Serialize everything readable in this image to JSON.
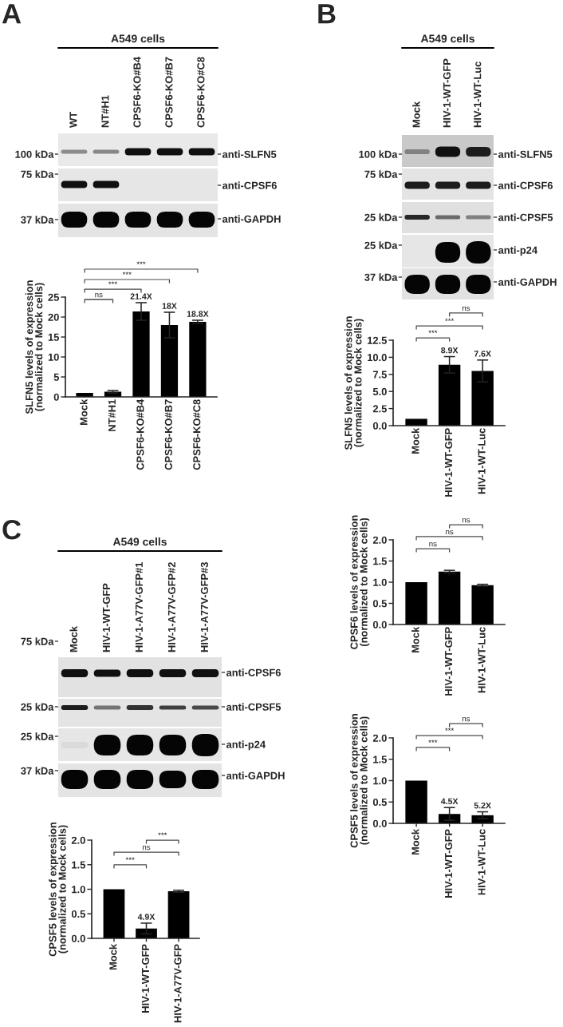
{
  "chart_data": [
    {
      "type": "other",
      "title": "A549 cells",
      "annotations": [
        "A"
      ],
      "categories": [
        "WT",
        "NT#H1",
        "CPSF6-KO#B4",
        "CPSF6-KO#B7",
        "CPSF6-KO#C8"
      ],
      "y_categories": [
        "100 kDa",
        "75 kDa",
        "37 kDa"
      ],
      "y2_categories": [
        "anti-SLFN5",
        "anti-CPSF6",
        "anti-GAPDH"
      ]
    },
    {
      "type": "bar",
      "ylabel": "SLFN5 levels of expression\n(normalized to Mock cells)",
      "categories": [
        "Mock",
        "NT#H1",
        "CPSF6-KO#B4",
        "CPSF6-KO#B7",
        "CPSF6-KO#C8"
      ],
      "values": [
        1,
        1.3,
        21.4,
        18,
        18.8
      ],
      "errors": [
        null,
        0.3,
        2.2,
        3.2,
        0.4
      ],
      "color": "#000000",
      "ylim": [
        0,
        25
      ],
      "yticks": [
        0,
        5,
        10,
        15,
        20,
        25
      ],
      "annotations": [
        "ns",
        "***",
        "***",
        "***",
        {
          "text": "21.4X",
          "x": "CPSF6-KO#B4",
          "y": 23.6
        },
        {
          "text": "18X",
          "x": "CPSF6-KO#B7",
          "y": 21.2
        },
        {
          "text": "18.8X",
          "x": "CPSF6-KO#C8",
          "y": 19.2
        }
      ]
    },
    {
      "type": "other",
      "title": "A549 cells",
      "annotations": [
        "B"
      ],
      "categories": [
        "Mock",
        "HIV-1-WT-GFP",
        "HIV-1-WT-Luc"
      ],
      "y_categories": [
        "100 kDa",
        "75 kDa",
        "25 kDa",
        "25 kDa",
        "37 kDa"
      ],
      "y2_categories": [
        "anti-SLFN5",
        "anti-CPSF6",
        "anti-CPSF5",
        "anti-p24",
        "anti-GAPDH"
      ]
    },
    {
      "type": "bar",
      "ylabel": "SLFN5 levels of expression\n(normalized to Mock cells)",
      "categories": [
        "Mock",
        "HIV-1-WT-GFP",
        "HIV-1-WT-Luc"
      ],
      "values": [
        1,
        8.9,
        8.0
      ],
      "errors": [
        null,
        1.2,
        1.6
      ],
      "color": "#000000",
      "ylim": [
        0,
        12.5
      ],
      "yticks": [
        {
          "value": 0,
          "label": "0.0"
        },
        2.5,
        {
          "value": 5,
          "label": "5.0"
        },
        7.5,
        {
          "value": 10,
          "label": "10.0"
        },
        12.5
      ],
      "annotations": [
        "***",
        "***",
        "ns",
        {
          "text": "8.9X",
          "x": "HIV-1-WT-GFP",
          "y": 10.1
        },
        {
          "text": "7.6X",
          "x": "HIV-1-WT-Luc",
          "y": 9.6
        }
      ]
    },
    {
      "type": "bar",
      "ylabel": "CPSF6 levels of expression\n(normalized to Mock cells)",
      "categories": [
        "Mock",
        "HIV-1-WT-GFP",
        "HIV-1-WT-Luc"
      ],
      "values": [
        1,
        1.25,
        0.93
      ],
      "errors": [
        null,
        0.03,
        0.02
      ],
      "color": "#000000",
      "ylim": [
        0,
        2
      ],
      "yticks": [
        {
          "value": 0,
          "label": "0.0"
        },
        0.5,
        {
          "value": 1,
          "label": "1.0"
        },
        1.5,
        {
          "value": 2,
          "label": "2.0"
        }
      ],
      "annotations": [
        "ns",
        "ns",
        "ns"
      ]
    },
    {
      "type": "bar",
      "ylabel": "CPSF5 levels of expression\n(normalized to Mock cells)",
      "categories": [
        "Mock",
        "HIV-1-WT-GFP",
        "HIV-1-WT-Luc"
      ],
      "values": [
        1,
        0.22,
        0.19
      ],
      "errors": [
        null,
        0.15,
        0.08
      ],
      "color": "#000000",
      "ylim": [
        0,
        2
      ],
      "yticks": [
        {
          "value": 0,
          "label": "0.0"
        },
        0.5,
        {
          "value": 1,
          "label": "1.0"
        },
        1.5,
        {
          "value": 2,
          "label": "2.0"
        }
      ],
      "annotations": [
        "***",
        "***",
        "ns",
        {
          "text": "4.5X",
          "x": "HIV-1-WT-GFP",
          "y": 0.37
        },
        {
          "text": "5.2X",
          "x": "HIV-1-WT-Luc",
          "y": 0.27
        }
      ]
    },
    {
      "type": "other",
      "title": "A549 cells",
      "annotations": [
        "C"
      ],
      "categories": [
        "Mock",
        "HIV-1-WT-GFP",
        "HIV-1-A77V-GFP#1",
        "HIV-1-A77V-GFP#2",
        "HIV-1-A77V-GFP#3"
      ],
      "y_categories": [
        "75 kDa",
        "25 kDa",
        "25 kDa",
        "37 kDa"
      ],
      "y2_categories": [
        "anti-CPSF6",
        "anti-CPSF5",
        "anti-p24",
        "anti-GAPDH"
      ]
    },
    {
      "type": "bar",
      "ylabel": "CPSF5 levels of expression\n(normalized to Mock cells)",
      "categories": [
        "Mock",
        "HIV-1-WT-GFP",
        "HIV-1-A77V-GFP"
      ],
      "values": [
        1,
        0.2,
        0.96
      ],
      "errors": [
        null,
        0.11,
        0.02
      ],
      "color": "#000000",
      "ylim": [
        0,
        2
      ],
      "yticks": [
        {
          "value": 0,
          "label": "0.0"
        },
        0.5,
        {
          "value": 1,
          "label": "1.0"
        },
        1.5,
        {
          "value": 2,
          "label": "2.0"
        }
      ],
      "annotations": [
        "***",
        "ns",
        "***",
        {
          "text": "4.9X",
          "x": "HIV-1-WT-GFP",
          "y": 0.31
        }
      ]
    }
  ]
}
